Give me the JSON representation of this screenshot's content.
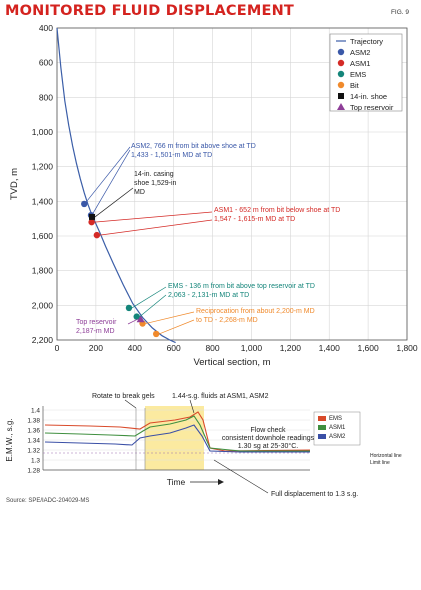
{
  "title": "MONITORED FLUID DISPLACEMENT",
  "fig_label": "FIG. 9",
  "source": "Source: SPE/IADC-204029-MS",
  "chart_data": [
    {
      "type": "scatter",
      "xlabel": "Vertical section, m",
      "ylabel": "TVD, m",
      "xlim": [
        0,
        1800
      ],
      "ylim": [
        400,
        2200
      ],
      "y_inverted": true,
      "grid": true,
      "legend_position": "top-right",
      "x_ticks": [
        "0",
        "200",
        "400",
        "600",
        "800",
        "1,000",
        "1,200",
        "1,400",
        "1,600",
        "1,800"
      ],
      "y_ticks": [
        "400",
        "600",
        "800",
        "1,000",
        "1,200",
        "1,400",
        "1,600",
        "1,800",
        "2,000",
        "2,200"
      ],
      "trajectory": {
        "name": "Trajectory",
        "color": "#3b5ea8",
        "x": [
          0,
          20,
          40,
          60,
          80,
          100,
          120,
          140,
          160,
          180,
          200,
          220,
          250,
          290,
          340,
          390,
          440,
          490,
          540,
          580,
          610
        ],
        "y": [
          400,
          630,
          820,
          960,
          1080,
          1180,
          1270,
          1350,
          1420,
          1480,
          1530,
          1580,
          1660,
          1760,
          1880,
          1990,
          2070,
          2130,
          2175,
          2200,
          2215
        ]
      },
      "points": [
        {
          "name": "ASM2",
          "color": "#3a58a8",
          "shape": "circle",
          "data": [
            {
              "x": 140,
              "y": 1415
            },
            {
              "x": 175,
              "y": 1480
            }
          ]
        },
        {
          "name": "ASM1",
          "color": "#d42a26",
          "shape": "circle",
          "data": [
            {
              "x": 178,
              "y": 1520
            },
            {
              "x": 205,
              "y": 1595
            }
          ]
        },
        {
          "name": "EMS",
          "color": "#14857a",
          "shape": "circle",
          "data": [
            {
              "x": 370,
              "y": 2015
            },
            {
              "x": 410,
              "y": 2065
            }
          ]
        },
        {
          "name": "Bit",
          "color": "#f08a2c",
          "shape": "circle",
          "data": [
            {
              "x": 440,
              "y": 2105
            },
            {
              "x": 510,
              "y": 2165
            }
          ]
        },
        {
          "name": "14-in. shoe",
          "color": "#111111",
          "shape": "square",
          "data": [
            {
              "x": 180,
              "y": 1490
            }
          ]
        },
        {
          "name": "Top reservoir",
          "color": "#8e3e98",
          "shape": "triangle",
          "data": [
            {
              "x": 430,
              "y": 2080
            }
          ]
        }
      ],
      "annotations": [
        {
          "color": "#3a58a8",
          "lines": [
            "ASM2, 766 m from bit above shoe at TD",
            "1,433 - 1,501-m MD at TD"
          ]
        },
        {
          "color": "#222222",
          "lines": [
            "14-in. casing",
            "shoe 1,529-in",
            "MD"
          ]
        },
        {
          "color": "#d42a26",
          "lines": [
            "ASM1 - 652 m from bit below shoe at TD",
            "1,547 - 1,615-m MD at TD"
          ]
        },
        {
          "color": "#14857a",
          "lines": [
            "EMS - 136 m from bit above top reservoir at TD",
            "2,063 - 2,131-m MD at TD"
          ]
        },
        {
          "color": "#f08a2c",
          "lines": [
            "Reciprocation from about 2,200-m MD",
            "to TD - 2,268-m MD"
          ]
        },
        {
          "color": "#8e3e98",
          "lines": [
            "Top reservoir",
            "2,187-m MD"
          ]
        }
      ]
    },
    {
      "type": "line",
      "xlabel": "Time",
      "ylabel": "E.M.W., s.g.",
      "ylim": [
        1.28,
        1.4
      ],
      "y_ticks": [
        "1.4",
        "1.38",
        "1.36",
        "1.34",
        "1.32",
        "1.3",
        "1.28"
      ],
      "legend_position": "right",
      "series": [
        {
          "name": "EMS",
          "color": "#d94a2a"
        },
        {
          "name": "ASM1",
          "color": "#3f8f3f"
        },
        {
          "name": "ASM2",
          "color": "#3a4fa6"
        }
      ],
      "legend_extra": [
        "Horizontal line",
        "Limit line"
      ],
      "annotations": {
        "rotate": "Rotate to break gels",
        "fluids": "1.44-s.g. fluids at ASM1, ASM2",
        "flowcheck": [
          "Flow check",
          "consistent downhole readings",
          "1.30 sg at 25-30°C."
        ],
        "displacement": "Full displacement to 1.3 s.g."
      }
    }
  ]
}
